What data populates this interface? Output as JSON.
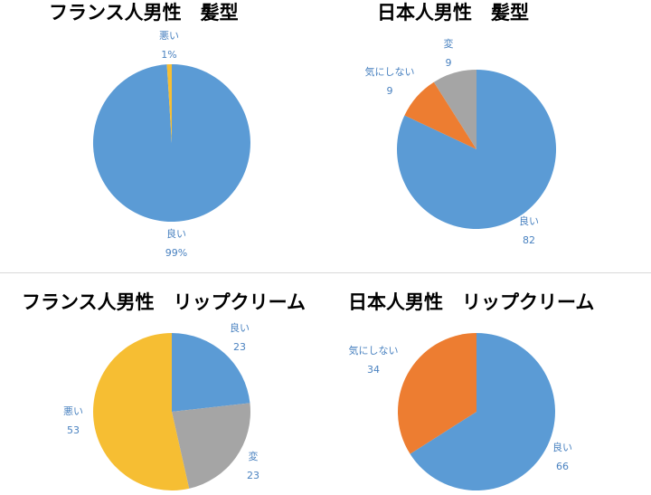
{
  "colors": {
    "blue": "#5B9BD5",
    "orange": "#ED7D31",
    "gray": "#A5A5A5",
    "yellow": "#F6BE33",
    "label": "#4A82C0"
  },
  "chart_data": [
    {
      "type": "pie",
      "title": "フランス人男性　髪型",
      "slices": [
        {
          "label": "良い",
          "value": 99,
          "display": "99%",
          "color": "blue"
        },
        {
          "label": "悪い",
          "value": 1,
          "display": "1%",
          "color": "yellow"
        }
      ]
    },
    {
      "type": "pie",
      "title": "日本人男性　髪型",
      "slices": [
        {
          "label": "良い",
          "value": 82,
          "display": "82",
          "color": "blue"
        },
        {
          "label": "気にしない",
          "value": 9,
          "display": "9",
          "color": "orange"
        },
        {
          "label": "変",
          "value": 9,
          "display": "9",
          "color": "gray"
        }
      ]
    },
    {
      "type": "pie",
      "title": "フランス人男性　リップクリーム",
      "slices": [
        {
          "label": "良い",
          "value": 23,
          "display": "23",
          "color": "blue"
        },
        {
          "label": "変",
          "value": 23,
          "display": "23",
          "color": "gray"
        },
        {
          "label": "悪い",
          "value": 53,
          "display": "53",
          "color": "yellow"
        }
      ]
    },
    {
      "type": "pie",
      "title": "日本人男性　リップクリーム",
      "slices": [
        {
          "label": "良い",
          "value": 66,
          "display": "66",
          "color": "blue"
        },
        {
          "label": "気にしない",
          "value": 34,
          "display": "34",
          "color": "orange"
        }
      ]
    }
  ]
}
